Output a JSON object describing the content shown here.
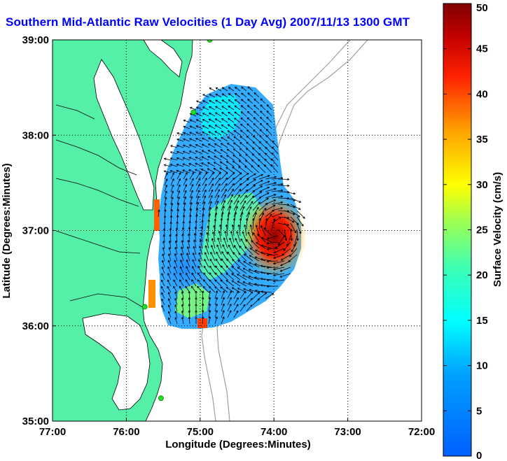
{
  "title": "Southern Mid-Atlantic Raw Velocities (1 Day Avg) 2007/11/13 1300 GMT",
  "map": {
    "x_axis_label": "Longitude (Degrees:Minutes)",
    "y_axis_label": "Latitude (Degrees:Minutes)",
    "lon_ticks": [
      "77:00",
      "76:00",
      "75:00",
      "74:00",
      "73:00",
      "72:00"
    ],
    "lat_ticks": [
      "39:00",
      "38:00",
      "37:00",
      "36:00",
      "35:00"
    ],
    "lon_range": [
      -77,
      -72
    ],
    "lat_range": [
      35,
      39
    ],
    "grid": "dotted",
    "land_color": "#55f0a8",
    "water_color": "#ffffff",
    "bathymetry_color": "#a0a0a0",
    "station_color": "#22dd22",
    "stations": [
      {
        "lon": -74.87,
        "lat": 39.0
      },
      {
        "lon": -75.09,
        "lat": 38.24
      },
      {
        "lon": -75.75,
        "lat": 36.2
      },
      {
        "lon": -75.53,
        "lat": 35.24
      }
    ]
  },
  "colorbar": {
    "label": "Surface Velocity (cm/s)",
    "ticks": [
      "0",
      "5",
      "10",
      "15",
      "20",
      "25",
      "30",
      "35",
      "40",
      "45",
      "50"
    ],
    "min": 0,
    "max": 50,
    "colormap": "jet"
  }
}
